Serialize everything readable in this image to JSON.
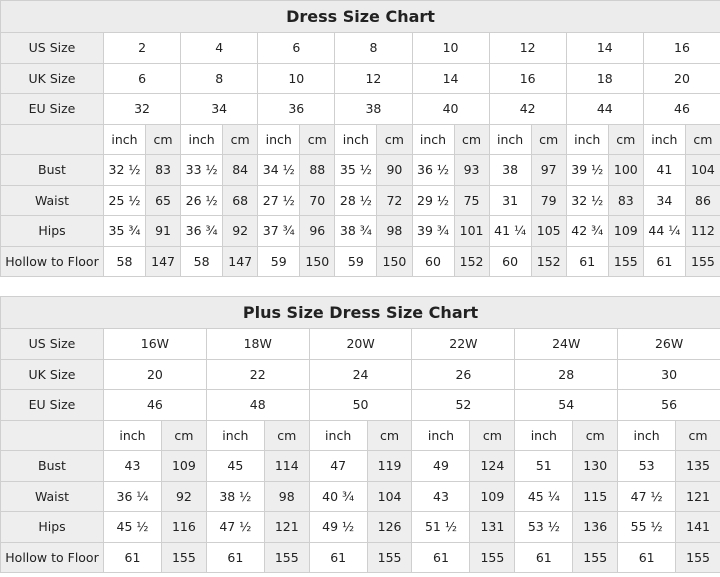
{
  "colors": {
    "header_bg": "#ececec",
    "cm_column_bg": "#eeeeee",
    "border": "#cfcfcf"
  },
  "tables": [
    {
      "title": "Dress Size Chart",
      "size_rows": [
        {
          "label": "US Size",
          "values": [
            "2",
            "4",
            "6",
            "8",
            "10",
            "12",
            "14",
            "16"
          ]
        },
        {
          "label": "UK Size",
          "values": [
            "6",
            "8",
            "10",
            "12",
            "14",
            "16",
            "18",
            "20"
          ]
        },
        {
          "label": "EU Size",
          "values": [
            "32",
            "34",
            "36",
            "38",
            "40",
            "42",
            "44",
            "46"
          ]
        }
      ],
      "unit_labels": [
        "inch",
        "cm"
      ],
      "measure_rows": [
        {
          "label": "Bust",
          "values": [
            "32 ½",
            "83",
            "33 ½",
            "84",
            "34 ½",
            "88",
            "35 ½",
            "90",
            "36 ½",
            "93",
            "38",
            "97",
            "39 ½",
            "100",
            "41",
            "104"
          ]
        },
        {
          "label": "Waist",
          "values": [
            "25 ½",
            "65",
            "26 ½",
            "68",
            "27 ½",
            "70",
            "28 ½",
            "72",
            "29 ½",
            "75",
            "31",
            "79",
            "32 ½",
            "83",
            "34",
            "86"
          ]
        },
        {
          "label": "Hips",
          "values": [
            "35 ¾",
            "91",
            "36 ¾",
            "92",
            "37 ¾",
            "96",
            "38 ¾",
            "98",
            "39 ¾",
            "101",
            "41 ¼",
            "105",
            "42 ¾",
            "109",
            "44 ¼",
            "112"
          ]
        },
        {
          "label": "Hollow to Floor",
          "values": [
            "58",
            "147",
            "58",
            "147",
            "59",
            "150",
            "59",
            "150",
            "60",
            "152",
            "60",
            "152",
            "61",
            "155",
            "61",
            "155"
          ]
        }
      ]
    },
    {
      "title": "Plus Size Dress Size Chart",
      "size_rows": [
        {
          "label": "US Size",
          "values": [
            "16W",
            "18W",
            "20W",
            "22W",
            "24W",
            "26W"
          ]
        },
        {
          "label": "UK Size",
          "values": [
            "20",
            "22",
            "24",
            "26",
            "28",
            "30"
          ]
        },
        {
          "label": "EU Size",
          "values": [
            "46",
            "48",
            "50",
            "52",
            "54",
            "56"
          ]
        }
      ],
      "unit_labels": [
        "inch",
        "cm"
      ],
      "measure_rows": [
        {
          "label": "Bust",
          "values": [
            "43",
            "109",
            "45",
            "114",
            "47",
            "119",
            "49",
            "124",
            "51",
            "130",
            "53",
            "135"
          ]
        },
        {
          "label": "Waist",
          "values": [
            "36 ¼",
            "92",
            "38 ½",
            "98",
            "40 ¾",
            "104",
            "43",
            "109",
            "45 ¼",
            "115",
            "47 ½",
            "121"
          ]
        },
        {
          "label": "Hips",
          "values": [
            "45 ½",
            "116",
            "47 ½",
            "121",
            "49 ½",
            "126",
            "51 ½",
            "131",
            "53 ½",
            "136",
            "55 ½",
            "141"
          ]
        },
        {
          "label": "Hollow to Floor",
          "values": [
            "61",
            "155",
            "61",
            "155",
            "61",
            "155",
            "61",
            "155",
            "61",
            "155",
            "61",
            "155"
          ]
        }
      ]
    }
  ]
}
